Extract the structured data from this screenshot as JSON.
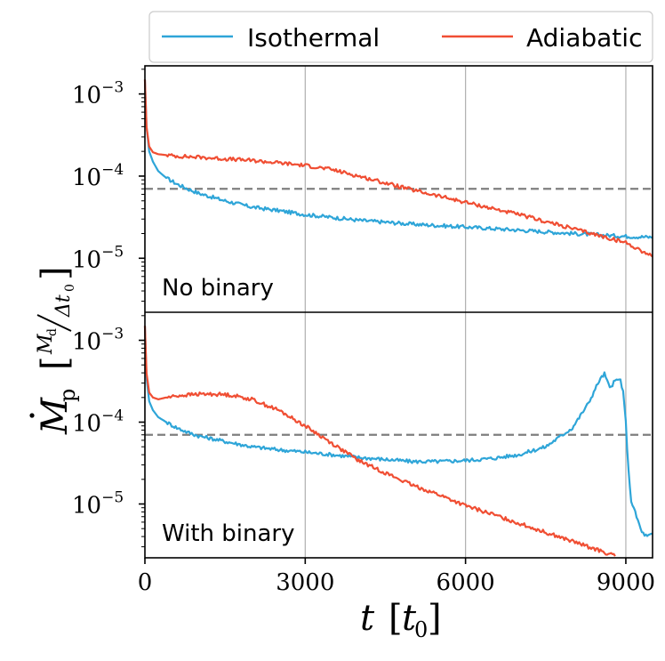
{
  "legend": {
    "placement": "top, outside",
    "entries": [
      {
        "label": "Isothermal",
        "color": "#2ea5d8"
      },
      {
        "label": "Adiabatic",
        "color": "#f04e33"
      }
    ]
  },
  "axes": {
    "xlabel_main": "t",
    "xlabel_unit": "t",
    "xlabel_unit_sub": "0",
    "ylabel_main": "M",
    "ylabel_sub": "p",
    "ylabel_frac_num": "M",
    "ylabel_frac_num_sub": "d",
    "ylabel_frac_den": "Δt",
    "ylabel_frac_den_sub": "0",
    "x_ticks": [
      "0",
      "3000",
      "6000",
      "9000"
    ],
    "y_tick_base": "10",
    "y_tick_exps": [
      "−3",
      "−4",
      "−5"
    ]
  },
  "chart_data": [
    {
      "type": "line",
      "panel_label": "No binary",
      "xlim": [
        0,
        9500
      ],
      "ylim": [
        2.2e-06,
        0.0022
      ],
      "y_scale": "log",
      "x_grid": [
        3000,
        6000,
        9000
      ],
      "threshold": 7e-05,
      "series": [
        {
          "name": "Isothermal",
          "color": "#2ea5d8",
          "x": [
            0,
            30,
            80,
            150,
            250,
            400,
            600,
            800,
            1000,
            1500,
            2000,
            2500,
            3000,
            4000,
            5000,
            6000,
            7000,
            8000,
            9000,
            9500
          ],
          "y": [
            0.0015,
            0.0004,
            0.0002,
            0.00015,
            0.000115,
            9.5e-05,
            8e-05,
            7e-05,
            6.2e-05,
            5e-05,
            4.2e-05,
            3.8e-05,
            3.4e-05,
            2.9e-05,
            2.6e-05,
            2.4e-05,
            2.2e-05,
            2e-05,
            1.85e-05,
            1.8e-05
          ]
        },
        {
          "name": "Adiabatic",
          "color": "#f04e33",
          "x": [
            0,
            30,
            80,
            150,
            250,
            400,
            600,
            1000,
            1500,
            2000,
            2500,
            3000,
            3500,
            4000,
            5000,
            6000,
            7000,
            8000,
            9000,
            9500
          ],
          "y": [
            0.0015,
            0.0004,
            0.00023,
            0.000195,
            0.000185,
            0.00018,
            0.000175,
            0.00017,
            0.000162,
            0.000155,
            0.000145,
            0.000135,
            0.00012,
            0.0001,
            6.8e-05,
            4.8e-05,
            3.4e-05,
            2.3e-05,
            1.55e-05,
            1.05e-05
          ]
        }
      ]
    },
    {
      "type": "line",
      "panel_label": "With binary",
      "xlim": [
        0,
        9500
      ],
      "ylim": [
        2.2e-06,
        0.0022
      ],
      "y_scale": "log",
      "x_grid": [
        3000,
        6000,
        9000
      ],
      "threshold": 7e-05,
      "series": [
        {
          "name": "Isothermal",
          "color": "#2ea5d8",
          "x": [
            0,
            30,
            80,
            150,
            250,
            400,
            600,
            800,
            1000,
            1500,
            2000,
            2500,
            3000,
            3500,
            4000,
            4500,
            5000,
            5500,
            6000,
            6500,
            7000,
            7500,
            8000,
            8300,
            8500,
            8600,
            8700,
            8800,
            8900,
            8950,
            9000,
            9050,
            9100,
            9200,
            9300,
            9400,
            9500
          ],
          "y": [
            0.0015,
            0.00035,
            0.00018,
            0.00014,
            0.000115,
            0.0001,
            8.5e-05,
            7.5e-05,
            6.8e-05,
            5.8e-05,
            5e-05,
            4.6e-05,
            4.3e-05,
            4e-05,
            3.7e-05,
            3.5e-05,
            3.3e-05,
            3.3e-05,
            3.4e-05,
            3.6e-05,
            4e-05,
            5e-05,
            8.5e-05,
            0.00017,
            0.00032,
            0.00039,
            0.00026,
            0.00032,
            0.00033,
            0.00023,
            0.0001,
            2.5e-05,
            1.1e-05,
            7e-06,
            4.5e-06,
            4e-06,
            4.3e-06
          ]
        },
        {
          "name": "Adiabatic",
          "color": "#f04e33",
          "x": [
            0,
            30,
            80,
            150,
            250,
            400,
            600,
            800,
            1000,
            1300,
            1600,
            2000,
            2500,
            3000,
            3500,
            4000,
            4500,
            5000,
            5500,
            6000,
            6500,
            7000,
            7500,
            8000,
            8500,
            8800
          ],
          "y": [
            0.0015,
            0.0004,
            0.00023,
            0.0002,
            0.00019,
            0.0002,
            0.00021,
            0.000215,
            0.00022,
            0.00022,
            0.000215,
            0.00019,
            0.00014,
            9e-05,
            5.5e-05,
            3.4e-05,
            2.4e-05,
            1.7e-05,
            1.3e-05,
            9.5e-06,
            7.5e-06,
            5.8e-06,
            4.5e-06,
            3.5e-06,
            2.7e-06,
            2.3e-06
          ]
        }
      ]
    }
  ]
}
